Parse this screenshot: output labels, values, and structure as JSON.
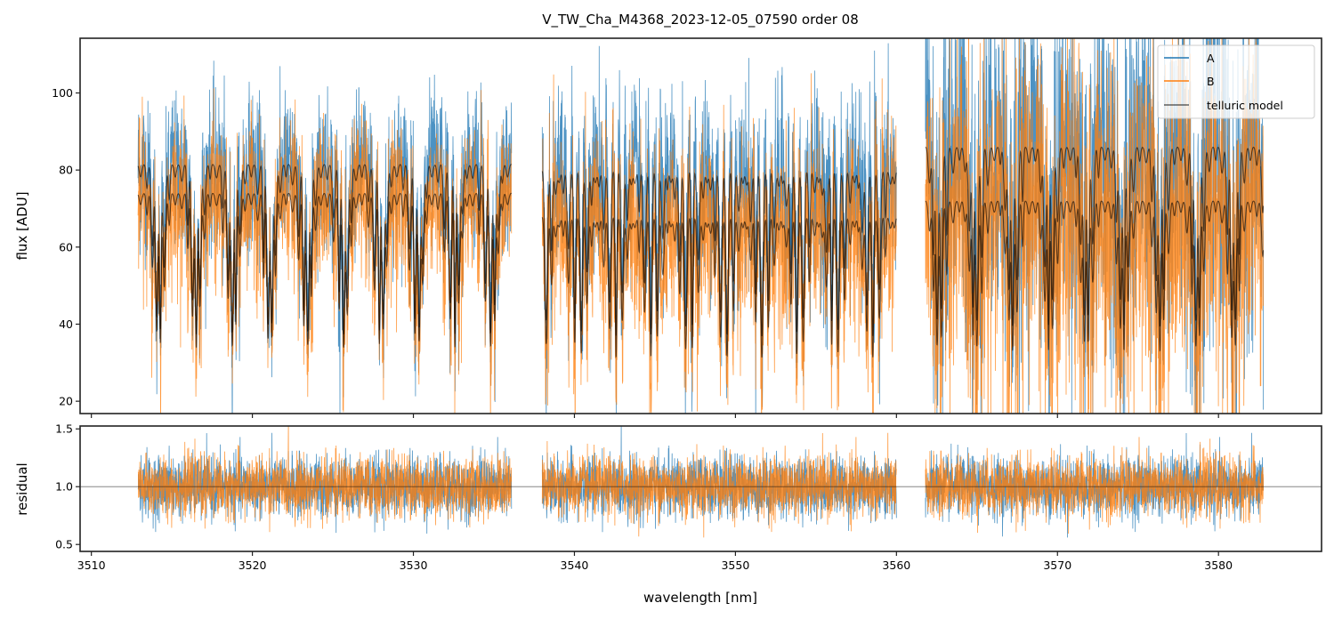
{
  "chart_data": [
    {
      "panel": "flux",
      "type": "line",
      "title": "V_TW_Cha_M4368_2023-12-05_07590  order 08",
      "xlabel": "",
      "ylabel": "flux [ADU]",
      "xlim": [
        3509.3,
        3586.4
      ],
      "ylim": [
        16.8,
        114.2
      ],
      "xticks": [
        3510,
        3520,
        3530,
        3540,
        3550,
        3560,
        3570,
        3580
      ],
      "yticks": [
        20,
        40,
        60,
        80,
        100
      ],
      "ytick_labels": [
        "20",
        "40",
        "60",
        "80",
        "100"
      ],
      "grid": false,
      "legend": {
        "position": "top-right",
        "entries": [
          {
            "label": "A",
            "color": "#1f77b4"
          },
          {
            "label": "B",
            "color": "#ff7f0e"
          },
          {
            "label": "telluric model",
            "color": "#000000"
          }
        ]
      },
      "segments": [
        {
          "x_start": 3512.9,
          "x_end": 3536.1,
          "continuum_A": 81.5,
          "continuum_B": 74.0,
          "noise": 10
        },
        {
          "x_start": 3538.0,
          "x_end": 3560.0,
          "continuum_A": 80.0,
          "continuum_B": 68.0,
          "noise": 12
        },
        {
          "x_start": 3561.8,
          "x_end": 3582.8,
          "continuum_A": 86.0,
          "continuum_B": 72.0,
          "noise": 22
        }
      ],
      "series": [
        {
          "name": "A",
          "color": "#1f77b4",
          "alpha": 0.8
        },
        {
          "name": "B",
          "color": "#ff7f0e",
          "alpha": 0.8
        },
        {
          "name": "telluric model",
          "color": "#000000",
          "alpha": 0.6,
          "count": 2
        }
      ]
    },
    {
      "panel": "residual",
      "type": "line",
      "title": "",
      "xlabel": "wavelength [nm]",
      "ylabel": "residual",
      "xlim": [
        3509.3,
        3586.4
      ],
      "ylim": [
        0.44,
        1.525
      ],
      "xticks": [
        3510,
        3520,
        3530,
        3540,
        3550,
        3560,
        3570,
        3580
      ],
      "xtick_labels": [
        "3510",
        "3520",
        "3530",
        "3540",
        "3550",
        "3560",
        "3570",
        "3580"
      ],
      "yticks": [
        0.5,
        1.0,
        1.5
      ],
      "ytick_labels": [
        "0.5",
        "1.0",
        "1.5"
      ],
      "reference_line": 1.0,
      "grid": false,
      "series": [
        {
          "name": "A",
          "color": "#1f77b4",
          "alpha": 0.8,
          "center": 1.0,
          "spread": 0.13
        },
        {
          "name": "B",
          "color": "#ff7f0e",
          "alpha": 0.8,
          "center": 1.0,
          "spread": 0.13
        }
      ]
    }
  ]
}
